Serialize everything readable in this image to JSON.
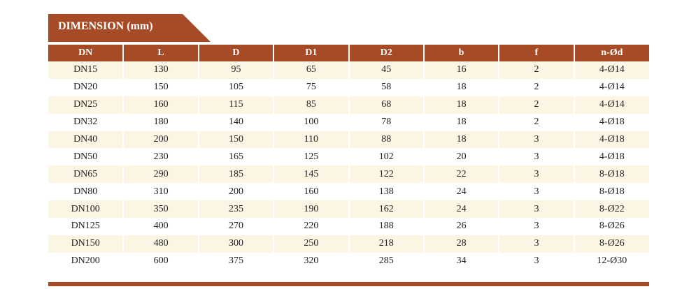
{
  "header": {
    "title": "DIMENSION (mm)"
  },
  "table": {
    "columns": [
      "DN",
      "L",
      "D",
      "D1",
      "D2",
      "b",
      "f",
      "n-Ød"
    ],
    "rows": [
      [
        "DN15",
        130,
        95,
        65,
        45,
        16,
        2,
        "4-Ø14"
      ],
      [
        "DN20",
        150,
        105,
        75,
        58,
        18,
        2,
        "4-Ø14"
      ],
      [
        "DN25",
        160,
        115,
        85,
        68,
        18,
        2,
        "4-Ø14"
      ],
      [
        "DN32",
        180,
        140,
        100,
        78,
        18,
        2,
        "4-Ø18"
      ],
      [
        "DN40",
        200,
        150,
        110,
        88,
        18,
        3,
        "4-Ø18"
      ],
      [
        "DN50",
        230,
        165,
        125,
        102,
        20,
        3,
        "4-Ø18"
      ],
      [
        "DN65",
        290,
        185,
        145,
        122,
        22,
        3,
        "8-Ø18"
      ],
      [
        "DN80",
        310,
        200,
        160,
        138,
        24,
        3,
        "8-Ø18"
      ],
      [
        "DN100",
        350,
        235,
        190,
        162,
        24,
        3,
        "8-Ø22"
      ],
      [
        "DN125",
        400,
        270,
        220,
        188,
        26,
        3,
        "8-Ø26"
      ],
      [
        "DN150",
        480,
        300,
        250,
        218,
        28,
        3,
        "8-Ø26"
      ],
      [
        "DN200",
        600,
        375,
        320,
        285,
        34,
        3,
        "12-Ø30"
      ]
    ]
  }
}
